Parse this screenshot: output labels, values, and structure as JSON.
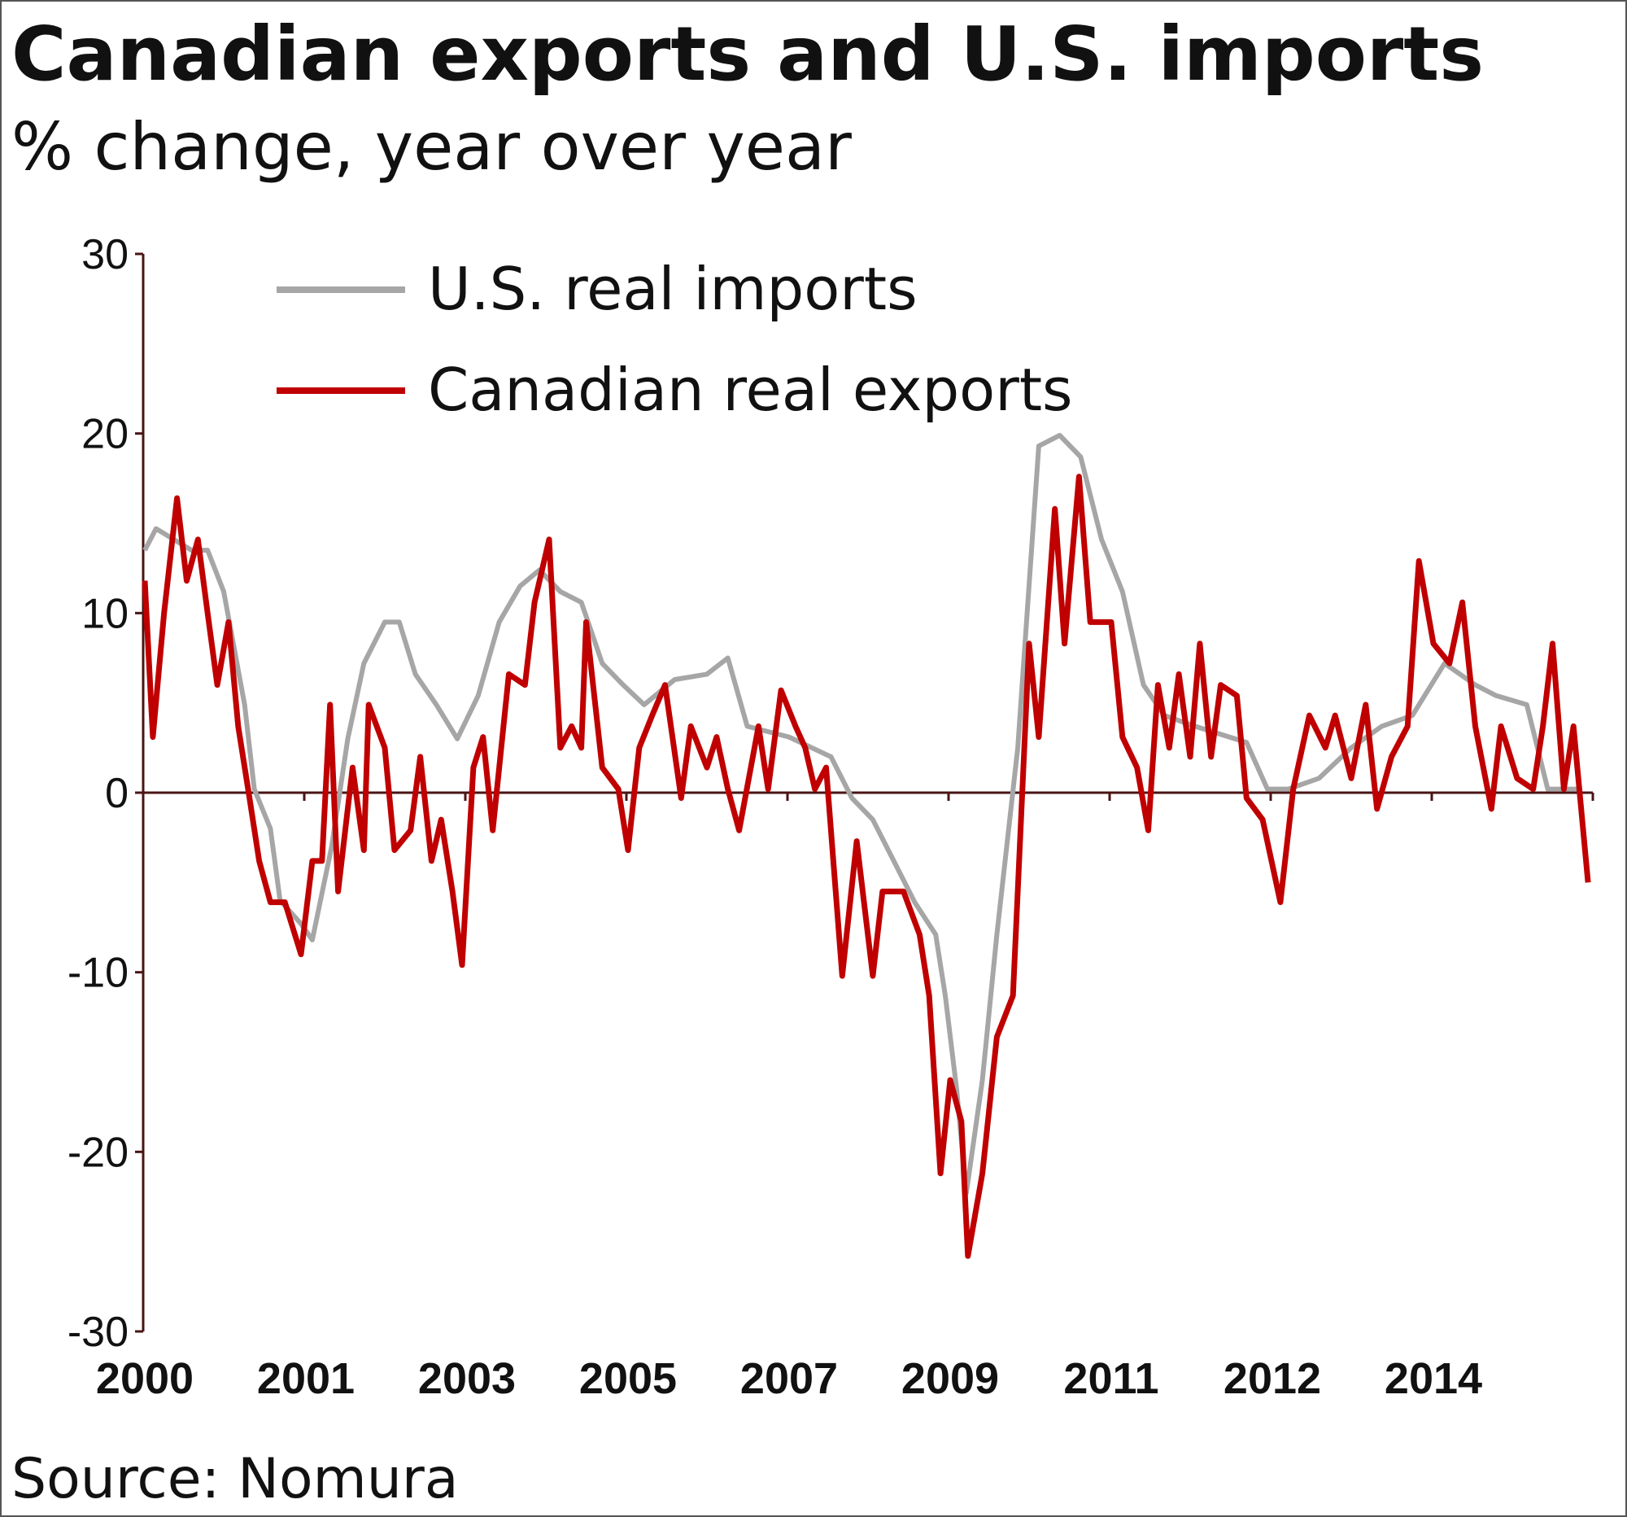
{
  "chart_data": {
    "type": "line",
    "title": "Canadian exports and U.S. imports",
    "subtitle": "% change, year over year",
    "source": "Source: Nomura",
    "xlabel": "",
    "ylabel": "",
    "ylim": [
      -30,
      30
    ],
    "yticks": [
      30,
      20,
      10,
      0,
      -10,
      -20,
      -30
    ],
    "x_axis_note": "x values are positions along the category axis (0 = 2000 tick, 9 = last tick)",
    "xlim": [
      0,
      9
    ],
    "xticks": [
      {
        "pos": 0,
        "label": "2000"
      },
      {
        "pos": 1,
        "label": "2001"
      },
      {
        "pos": 2,
        "label": "2003"
      },
      {
        "pos": 3,
        "label": "2005"
      },
      {
        "pos": 4,
        "label": "2007"
      },
      {
        "pos": 5,
        "label": "2009"
      },
      {
        "pos": 6,
        "label": "2011"
      },
      {
        "pos": 7,
        "label": "2012"
      },
      {
        "pos": 8,
        "label": "2014"
      },
      {
        "pos": 9,
        "label": ""
      }
    ],
    "legend_position": "top-left",
    "series": [
      {
        "name": "U.S. real imports",
        "color": "#a6a6a6",
        "points": [
          [
            0.01,
            13.5
          ],
          [
            0.08,
            14.7
          ],
          [
            0.3,
            13.5
          ],
          [
            0.4,
            13.5
          ],
          [
            0.5,
            11.2
          ],
          [
            0.63,
            4.9
          ],
          [
            0.69,
            0.2
          ],
          [
            0.79,
            -2
          ],
          [
            0.85,
            -6
          ],
          [
            0.98,
            -7.3
          ],
          [
            1.05,
            -8.2
          ],
          [
            1.17,
            -3
          ],
          [
            1.27,
            3
          ],
          [
            1.37,
            7.2
          ],
          [
            1.5,
            9.5
          ],
          [
            1.59,
            9.5
          ],
          [
            1.69,
            6.6
          ],
          [
            1.82,
            4.9
          ],
          [
            1.95,
            3
          ],
          [
            2.08,
            5.4
          ],
          [
            2.21,
            9.5
          ],
          [
            2.34,
            11.5
          ],
          [
            2.46,
            12.4
          ],
          [
            2.59,
            11.2
          ],
          [
            2.72,
            10.6
          ],
          [
            2.85,
            7.2
          ],
          [
            2.98,
            6
          ],
          [
            3.11,
            4.9
          ],
          [
            3.3,
            6.3
          ],
          [
            3.5,
            6.6
          ],
          [
            3.63,
            7.5
          ],
          [
            3.75,
            3.7
          ],
          [
            4.01,
            3.1
          ],
          [
            4.27,
            2
          ],
          [
            4.4,
            -0.3
          ],
          [
            4.53,
            -1.5
          ],
          [
            4.66,
            -3.8
          ],
          [
            4.79,
            -6.1
          ],
          [
            4.92,
            -7.9
          ],
          [
            4.98,
            -11.3
          ],
          [
            5.05,
            -16.5
          ],
          [
            5.11,
            -22.3
          ],
          [
            5.21,
            -16
          ],
          [
            5.3,
            -7.9
          ],
          [
            5.43,
            2.5
          ],
          [
            5.56,
            19.3
          ],
          [
            5.69,
            19.9
          ],
          [
            5.82,
            18.7
          ],
          [
            5.95,
            14.1
          ],
          [
            6.08,
            11.2
          ],
          [
            6.21,
            6
          ],
          [
            6.34,
            4.3
          ],
          [
            6.53,
            3.7
          ],
          [
            6.85,
            2.8
          ],
          [
            6.98,
            0.2
          ],
          [
            7.11,
            0.2
          ],
          [
            7.3,
            0.8
          ],
          [
            7.5,
            2.5
          ],
          [
            7.69,
            3.7
          ],
          [
            7.88,
            4.3
          ],
          [
            8.08,
            7.2
          ],
          [
            8.27,
            6
          ],
          [
            8.4,
            5.4
          ],
          [
            8.59,
            4.9
          ],
          [
            8.72,
            0.2
          ],
          [
            8.92,
            0.2
          ]
        ]
      },
      {
        "name": "Canadian real exports",
        "color": "#c00000",
        "points": [
          [
            0.01,
            11.8
          ],
          [
            0.06,
            3.1
          ],
          [
            0.13,
            10
          ],
          [
            0.21,
            16.4
          ],
          [
            0.27,
            11.8
          ],
          [
            0.34,
            14.1
          ],
          [
            0.4,
            10
          ],
          [
            0.46,
            6
          ],
          [
            0.53,
            9.5
          ],
          [
            0.59,
            3.7
          ],
          [
            0.66,
            -0.3
          ],
          [
            0.72,
            -3.8
          ],
          [
            0.79,
            -6.1
          ],
          [
            0.88,
            -6.1
          ],
          [
            0.98,
            -9
          ],
          [
            1.05,
            -3.8
          ],
          [
            1.11,
            -3.8
          ],
          [
            1.16,
            4.9
          ],
          [
            1.21,
            -5.5
          ],
          [
            1.3,
            1.4
          ],
          [
            1.37,
            -3.2
          ],
          [
            1.4,
            4.9
          ],
          [
            1.5,
            2.5
          ],
          [
            1.56,
            -3.2
          ],
          [
            1.66,
            -2.1
          ],
          [
            1.72,
            2
          ],
          [
            1.79,
            -3.8
          ],
          [
            1.85,
            -1.5
          ],
          [
            1.92,
            -5.5
          ],
          [
            1.98,
            -9.6
          ],
          [
            2.05,
            1.4
          ],
          [
            2.11,
            3.1
          ],
          [
            2.17,
            -2.1
          ],
          [
            2.27,
            6.6
          ],
          [
            2.37,
            6
          ],
          [
            2.43,
            10.6
          ],
          [
            2.52,
            14.1
          ],
          [
            2.59,
            2.5
          ],
          [
            2.66,
            3.7
          ],
          [
            2.72,
            2.5
          ],
          [
            2.75,
            9.5
          ],
          [
            2.85,
            1.4
          ],
          [
            2.95,
            0.2
          ],
          [
            3.01,
            -3.2
          ],
          [
            3.08,
            2.5
          ],
          [
            3.16,
            4.3
          ],
          [
            3.24,
            6
          ],
          [
            3.34,
            -0.3
          ],
          [
            3.4,
            3.7
          ],
          [
            3.5,
            1.4
          ],
          [
            3.56,
            3.1
          ],
          [
            3.63,
            0.2
          ],
          [
            3.7,
            -2.1
          ],
          [
            3.82,
            3.7
          ],
          [
            3.88,
            0.2
          ],
          [
            3.96,
            5.7
          ],
          [
            4.05,
            3.7
          ],
          [
            4.11,
            2.5
          ],
          [
            4.17,
            0.2
          ],
          [
            4.24,
            1.4
          ],
          [
            4.34,
            -10.2
          ],
          [
            4.43,
            -2.7
          ],
          [
            4.53,
            -10.2
          ],
          [
            4.59,
            -5.5
          ],
          [
            4.72,
            -5.5
          ],
          [
            4.82,
            -7.9
          ],
          [
            4.88,
            -11.3
          ],
          [
            4.95,
            -21.2
          ],
          [
            5.01,
            -16
          ],
          [
            5.08,
            -18.3
          ],
          [
            5.12,
            -25.8
          ],
          [
            5.21,
            -21.2
          ],
          [
            5.3,
            -13.6
          ],
          [
            5.4,
            -11.3
          ],
          [
            5.5,
            8.3
          ],
          [
            5.56,
            3.1
          ],
          [
            5.66,
            15.8
          ],
          [
            5.72,
            8.3
          ],
          [
            5.81,
            17.6
          ],
          [
            5.88,
            9.5
          ],
          [
            6.01,
            9.5
          ],
          [
            6.08,
            3.1
          ],
          [
            6.17,
            1.4
          ],
          [
            6.24,
            -2.1
          ],
          [
            6.3,
            6
          ],
          [
            6.37,
            2.5
          ],
          [
            6.43,
            6.6
          ],
          [
            6.5,
            2
          ],
          [
            6.56,
            8.3
          ],
          [
            6.63,
            2
          ],
          [
            6.69,
            6
          ],
          [
            6.79,
            5.4
          ],
          [
            6.85,
            -0.3
          ],
          [
            6.95,
            -1.5
          ],
          [
            7.06,
            -6.1
          ],
          [
            7.14,
            0.2
          ],
          [
            7.24,
            4.3
          ],
          [
            7.34,
            2.5
          ],
          [
            7.4,
            4.3
          ],
          [
            7.5,
            0.8
          ],
          [
            7.59,
            4.9
          ],
          [
            7.66,
            -0.9
          ],
          [
            7.75,
            2
          ],
          [
            7.85,
            3.7
          ],
          [
            7.92,
            12.9
          ],
          [
            8.01,
            8.3
          ],
          [
            8.11,
            7.2
          ],
          [
            8.19,
            10.6
          ],
          [
            8.27,
            3.7
          ],
          [
            8.37,
            -0.9
          ],
          [
            8.43,
            3.7
          ],
          [
            8.53,
            0.8
          ],
          [
            8.63,
            0.2
          ],
          [
            8.69,
            3.7
          ],
          [
            8.75,
            8.3
          ],
          [
            8.82,
            0.2
          ],
          [
            8.88,
            3.7
          ],
          [
            8.97,
            -5
          ]
        ]
      }
    ]
  }
}
